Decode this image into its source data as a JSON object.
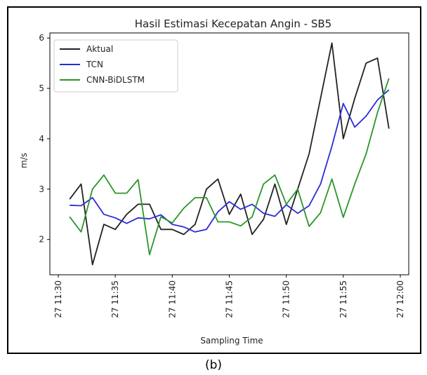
{
  "caption": "(b)",
  "chart_data": {
    "type": "line",
    "title": "Hasil Estimasi Kecepatan Angin - SB5",
    "xlabel": "Sampling Time",
    "ylabel": "m/s",
    "x": [
      "11:31",
      "11:32",
      "11:33",
      "11:34",
      "11:35",
      "11:36",
      "11:37",
      "11:38",
      "11:39",
      "11:40",
      "11:41",
      "11:42",
      "11:43",
      "11:44",
      "11:45",
      "11:46",
      "11:47",
      "11:48",
      "11:49",
      "11:50",
      "11:51",
      "11:52",
      "11:53",
      "11:54",
      "11:55",
      "11:56",
      "11:57",
      "11:58",
      "11:59"
    ],
    "xlim": [
      "11:30",
      "12:00"
    ],
    "xticks": [
      "27 11:30",
      "27 11:35",
      "27 11:40",
      "27 11:45",
      "27 11:50",
      "27 11:55",
      "27 12:00"
    ],
    "ylim": [
      1.3,
      6.1
    ],
    "yticks": [
      2,
      3,
      4,
      5,
      6
    ],
    "grid": false,
    "legend_position": "top-left",
    "series": [
      {
        "name": "Aktual",
        "color": "#222222",
        "values": [
          2.8,
          3.1,
          1.5,
          2.3,
          2.2,
          2.5,
          2.7,
          2.7,
          2.2,
          2.2,
          2.1,
          2.3,
          3.0,
          3.2,
          2.5,
          2.9,
          2.1,
          2.4,
          3.1,
          2.3,
          3.0,
          3.7,
          4.8,
          5.9,
          4.0,
          4.8,
          5.5,
          5.6,
          4.2
        ]
      },
      {
        "name": "TCN",
        "color": "#2b2bd9",
        "values": [
          2.68,
          2.67,
          2.83,
          2.5,
          2.43,
          2.32,
          2.43,
          2.41,
          2.49,
          2.3,
          2.25,
          2.15,
          2.2,
          2.55,
          2.75,
          2.6,
          2.7,
          2.52,
          2.46,
          2.69,
          2.52,
          2.67,
          3.1,
          3.85,
          4.7,
          4.23,
          4.45,
          4.77,
          4.97
        ]
      },
      {
        "name": "CNN-BiDLSTM",
        "color": "#2a962a",
        "values": [
          2.45,
          2.15,
          3.0,
          3.28,
          2.92,
          2.92,
          3.19,
          1.7,
          2.45,
          2.33,
          2.62,
          2.83,
          2.83,
          2.35,
          2.35,
          2.27,
          2.45,
          3.1,
          3.28,
          2.7,
          3.0,
          2.26,
          2.53,
          3.2,
          2.44,
          3.1,
          3.7,
          4.52,
          5.2
        ]
      }
    ]
  }
}
